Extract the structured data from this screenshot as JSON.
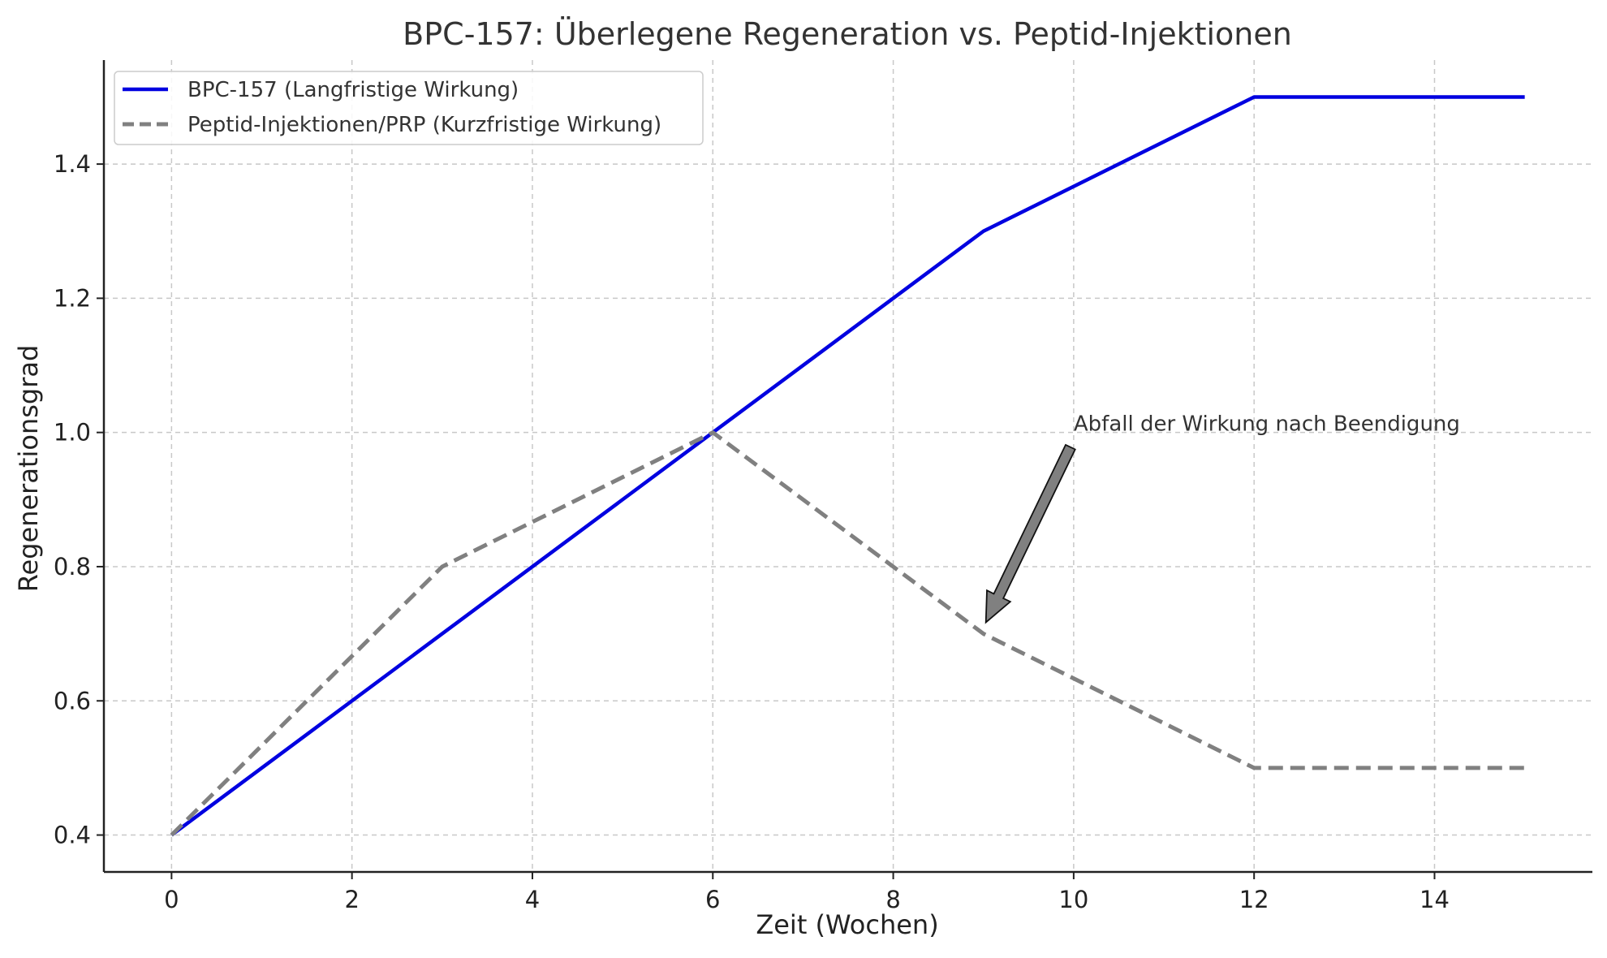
{
  "chart_data": {
    "type": "line",
    "title": "BPC-157: Überlegene Regeneration vs. Peptid-Injektionen",
    "xlabel": "Zeit (Wochen)",
    "ylabel": "Regenerationsgrad",
    "xlim": [
      -0.75,
      15.75
    ],
    "ylim": [
      0.345,
      1.555
    ],
    "xticks": [
      0,
      2,
      4,
      6,
      8,
      10,
      12,
      14
    ],
    "yticks": [
      0.4,
      0.6,
      0.8,
      1.0,
      1.2,
      1.4
    ],
    "xtick_labels": [
      "0",
      "2",
      "4",
      "6",
      "8",
      "10",
      "12",
      "14"
    ],
    "ytick_labels": [
      "0.4",
      "0.6",
      "0.8",
      "1.0",
      "1.2",
      "1.4"
    ],
    "grid": true,
    "legend_position": "top-left",
    "series": [
      {
        "name": "BPC-157 (Langfristige Wirkung)",
        "x": [
          0,
          3,
          6,
          9,
          12,
          15
        ],
        "y": [
          0.4,
          0.7,
          1.0,
          1.3,
          1.5,
          1.5
        ],
        "color": "#0000e0",
        "style": "solid"
      },
      {
        "name": "Peptid-Injektionen/PRP (Kurzfristige Wirkung)",
        "x": [
          0,
          3,
          6,
          9,
          12,
          15
        ],
        "y": [
          0.4,
          0.8,
          1.0,
          0.7,
          0.5,
          0.5
        ],
        "color": "#808080",
        "style": "dashed"
      }
    ],
    "annotations": [
      {
        "text": "Abfall der Wirkung nach Beendigung",
        "xy": [
          9,
          0.7
        ],
        "xytext": [
          10,
          1.0
        ],
        "arrow_color": "#808080"
      }
    ]
  }
}
